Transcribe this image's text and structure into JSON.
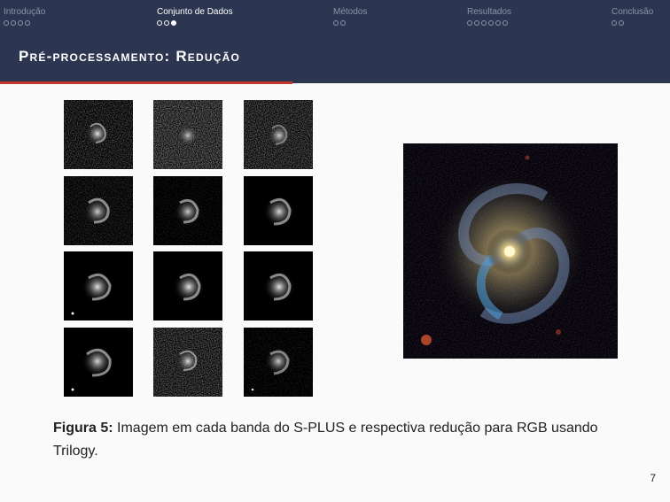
{
  "nav": {
    "sections": [
      {
        "label": "Introdução",
        "dots": 4,
        "filled": 0,
        "active": false
      },
      {
        "label": "Conjunto de Dados",
        "dots": 3,
        "filled": 1,
        "active": true
      },
      {
        "label": "Métodos",
        "dots": 2,
        "filled": 0,
        "active": false
      },
      {
        "label": "Resultados",
        "dots": 6,
        "filled": 0,
        "active": false
      },
      {
        "label": "Conclusão",
        "dots": 2,
        "filled": 0,
        "active": false
      }
    ]
  },
  "slide": {
    "title": "Pré-processamento: Redução",
    "caption_label": "Figura 5:",
    "caption_text": "Imagem em cada banda do S-PLUS e respectiva redução para RGB usando Trilogy.",
    "page_number": "7"
  },
  "colors": {
    "header_bg": "#2d3650",
    "accent_red": "#c0392b"
  }
}
